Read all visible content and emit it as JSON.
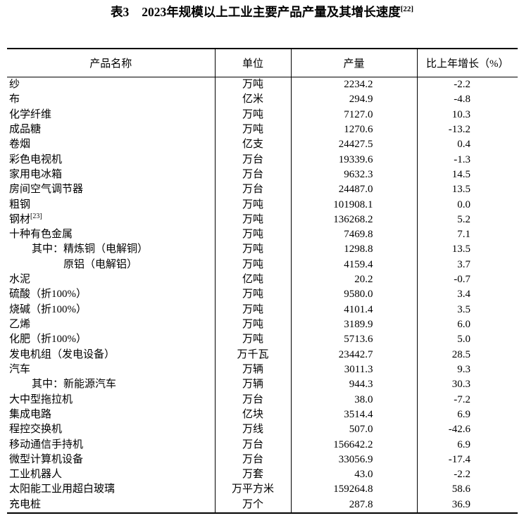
{
  "title": {
    "prefix": "表3",
    "main": "2023年规模以上工业主要产品产量及其增长速度",
    "sup": "[22]"
  },
  "table": {
    "headers": [
      "产品名称",
      "单位",
      "产量",
      "比上年增长（%）"
    ],
    "rows": [
      {
        "name": "纱",
        "unit": "万吨",
        "output": "2234.2",
        "growth": "-2.2",
        "indent": 0
      },
      {
        "name": "布",
        "unit": "亿米",
        "output": "294.9",
        "growth": "-4.8",
        "indent": 0
      },
      {
        "name": "化学纤维",
        "unit": "万吨",
        "output": "7127.0",
        "growth": "10.3",
        "indent": 0
      },
      {
        "name": "成品糖",
        "unit": "万吨",
        "output": "1270.6",
        "growth": "-13.2",
        "indent": 0
      },
      {
        "name": "卷烟",
        "unit": "亿支",
        "output": "24427.5",
        "growth": "0.4",
        "indent": 0
      },
      {
        "name": "彩色电视机",
        "unit": "万台",
        "output": "19339.6",
        "growth": "-1.3",
        "indent": 0
      },
      {
        "name": "家用电冰箱",
        "unit": "万台",
        "output": "9632.3",
        "growth": "14.5",
        "indent": 0
      },
      {
        "name": "房间空气调节器",
        "unit": "万台",
        "output": "24487.0",
        "growth": "13.5",
        "indent": 0
      },
      {
        "name": "粗钢",
        "unit": "万吨",
        "output": "101908.1",
        "growth": "0.0",
        "indent": 0
      },
      {
        "name": "钢材",
        "sup": "[23]",
        "unit": "万吨",
        "output": "136268.2",
        "growth": "5.2",
        "indent": 0
      },
      {
        "name": "十种有色金属",
        "unit": "万吨",
        "output": "7469.8",
        "growth": "7.1",
        "indent": 0
      },
      {
        "name": "其中：精炼铜（电解铜）",
        "unit": "万吨",
        "output": "1298.8",
        "growth": "13.5",
        "indent": 1
      },
      {
        "name": "原铝（电解铝）",
        "unit": "万吨",
        "output": "4159.4",
        "growth": "3.7",
        "indent": 2
      },
      {
        "name": "水泥",
        "unit": "亿吨",
        "output": "20.2",
        "growth": "-0.7",
        "indent": 0
      },
      {
        "name": "硫酸（折100%）",
        "unit": "万吨",
        "output": "9580.0",
        "growth": "3.4",
        "indent": 0
      },
      {
        "name": "烧碱（折100%）",
        "unit": "万吨",
        "output": "4101.4",
        "growth": "3.5",
        "indent": 0
      },
      {
        "name": "乙烯",
        "unit": "万吨",
        "output": "3189.9",
        "growth": "6.0",
        "indent": 0
      },
      {
        "name": "化肥（折100%）",
        "unit": "万吨",
        "output": "5713.6",
        "growth": "5.0",
        "indent": 0
      },
      {
        "name": "发电机组（发电设备）",
        "unit": "万千瓦",
        "output": "23442.7",
        "growth": "28.5",
        "indent": 0
      },
      {
        "name": "汽车",
        "unit": "万辆",
        "output": "3011.3",
        "growth": "9.3",
        "indent": 0
      },
      {
        "name": "其中：新能源汽车",
        "unit": "万辆",
        "output": "944.3",
        "growth": "30.3",
        "indent": 1
      },
      {
        "name": "大中型拖拉机",
        "unit": "万台",
        "output": "38.0",
        "growth": "-7.2",
        "indent": 0
      },
      {
        "name": "集成电路",
        "unit": "亿块",
        "output": "3514.4",
        "growth": "6.9",
        "indent": 0
      },
      {
        "name": "程控交换机",
        "unit": "万线",
        "output": "507.0",
        "growth": "-42.6",
        "indent": 0
      },
      {
        "name": "移动通信手持机",
        "unit": "万台",
        "output": "156642.2",
        "growth": "6.9",
        "indent": 0
      },
      {
        "name": "微型计算机设备",
        "unit": "万台",
        "output": "33056.9",
        "growth": "-17.4",
        "indent": 0
      },
      {
        "name": "工业机器人",
        "unit": "万套",
        "output": "43.0",
        "growth": "-2.2",
        "indent": 0
      },
      {
        "name": "太阳能工业用超白玻璃",
        "unit": "万平方米",
        "output": "159264.8",
        "growth": "58.6",
        "indent": 0
      },
      {
        "name": "充电桩",
        "unit": "万个",
        "output": "287.8",
        "growth": "36.9",
        "indent": 0
      }
    ]
  }
}
